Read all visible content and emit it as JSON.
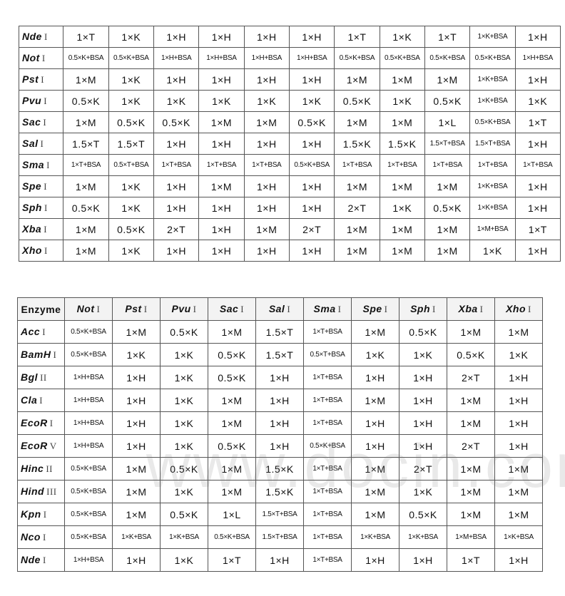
{
  "table1": {
    "rows": [
      {
        "enzyme": "Nde",
        "rn": "I",
        "cells": [
          "1×T",
          "1×K",
          "1×H",
          "1×H",
          "1×H",
          "1×H",
          "1×T",
          "1×K",
          "1×T",
          "1×K+BSA",
          "1×H"
        ]
      },
      {
        "enzyme": "Not",
        "rn": "I",
        "cells": [
          "0.5×K+BSA",
          "0.5×K+BSA",
          "1×H+BSA",
          "1×H+BSA",
          "1×H+BSA",
          "1×H+BSA",
          "0.5×K+BSA",
          "0.5×K+BSA",
          "0.5×K+BSA",
          "0.5×K+BSA",
          "1×H+BSA"
        ]
      },
      {
        "enzyme": "Pst",
        "rn": "I",
        "cells": [
          "1×M",
          "1×K",
          "1×H",
          "1×H",
          "1×H",
          "1×H",
          "1×M",
          "1×M",
          "1×M",
          "1×K+BSA",
          "1×H"
        ]
      },
      {
        "enzyme": "Pvu",
        "rn": "I",
        "cells": [
          "0.5×K",
          "1×K",
          "1×K",
          "1×K",
          "1×K",
          "1×K",
          "0.5×K",
          "1×K",
          "0.5×K",
          "1×K+BSA",
          "1×K"
        ]
      },
      {
        "enzyme": "Sac",
        "rn": "I",
        "cells": [
          "1×M",
          "0.5×K",
          "0.5×K",
          "1×M",
          "1×M",
          "0.5×K",
          "1×M",
          "1×M",
          "1×L",
          "0.5×K+BSA",
          "1×T"
        ]
      },
      {
        "enzyme": "Sal",
        "rn": "I",
        "cells": [
          "1.5×T",
          "1.5×T",
          "1×H",
          "1×H",
          "1×H",
          "1×H",
          "1.5×K",
          "1.5×K",
          "1.5×T+BSA",
          "1.5×T+BSA",
          "1×H"
        ]
      },
      {
        "enzyme": "Sma",
        "rn": "I",
        "cells": [
          "1×T+BSA",
          "0.5×T+BSA",
          "1×T+BSA",
          "1×T+BSA",
          "1×T+BSA",
          "0.5×K+BSA",
          "1×T+BSA",
          "1×T+BSA",
          "1×T+BSA",
          "1×T+BSA",
          "1×T+BSA"
        ]
      },
      {
        "enzyme": "Spe",
        "rn": "I",
        "cells": [
          "1×M",
          "1×K",
          "1×H",
          "1×M",
          "1×H",
          "1×H",
          "1×M",
          "1×M",
          "1×M",
          "1×K+BSA",
          "1×H"
        ]
      },
      {
        "enzyme": "Sph",
        "rn": "I",
        "cells": [
          "0.5×K",
          "1×K",
          "1×H",
          "1×H",
          "1×H",
          "1×H",
          "2×T",
          "1×K",
          "0.5×K",
          "1×K+BSA",
          "1×H"
        ]
      },
      {
        "enzyme": "Xba",
        "rn": "I",
        "cells": [
          "1×M",
          "0.5×K",
          "2×T",
          "1×H",
          "1×M",
          "2×T",
          "1×M",
          "1×M",
          "1×M",
          "1×M+BSA",
          "1×T"
        ]
      },
      {
        "enzyme": "Xho",
        "rn": "I",
        "cells": [
          "1×M",
          "1×K",
          "1×H",
          "1×H",
          "1×H",
          "1×H",
          "1×M",
          "1×M",
          "1×M",
          "1×K",
          "1×H"
        ]
      }
    ]
  },
  "table2": {
    "header_label": "Enzyme",
    "columns": [
      {
        "enzyme": "Not",
        "rn": "I"
      },
      {
        "enzyme": "Pst",
        "rn": "I"
      },
      {
        "enzyme": "Pvu",
        "rn": "I"
      },
      {
        "enzyme": "Sac",
        "rn": "I"
      },
      {
        "enzyme": "Sal",
        "rn": "I"
      },
      {
        "enzyme": "Sma",
        "rn": "I"
      },
      {
        "enzyme": "Spe",
        "rn": "I"
      },
      {
        "enzyme": "Sph",
        "rn": "I"
      },
      {
        "enzyme": "Xba",
        "rn": "I"
      },
      {
        "enzyme": "Xho",
        "rn": "I"
      }
    ],
    "rows": [
      {
        "enzyme": "Acc",
        "rn": "I",
        "cells": [
          "0.5×K+BSA",
          "1×M",
          "0.5×K",
          "1×M",
          "1.5×T",
          "1×T+BSA",
          "1×M",
          "0.5×K",
          "1×M",
          "1×M"
        ]
      },
      {
        "enzyme": "BamH",
        "rn": "I",
        "cells": [
          "0.5×K+BSA",
          "1×K",
          "1×K",
          "0.5×K",
          "1.5×T",
          "0.5×T+BSA",
          "1×K",
          "1×K",
          "0.5×K",
          "1×K"
        ]
      },
      {
        "enzyme": "Bgl",
        "rn": "II",
        "cells": [
          "1×H+BSA",
          "1×H",
          "1×K",
          "0.5×K",
          "1×H",
          "1×T+BSA",
          "1×H",
          "1×H",
          "2×T",
          "1×H"
        ]
      },
      {
        "enzyme": "Cla",
        "rn": "I",
        "cells": [
          "1×H+BSA",
          "1×H",
          "1×K",
          "1×M",
          "1×H",
          "1×T+BSA",
          "1×M",
          "1×H",
          "1×M",
          "1×H"
        ]
      },
      {
        "enzyme": "EcoR",
        "rn": "I",
        "cells": [
          "1×H+BSA",
          "1×H",
          "1×K",
          "1×M",
          "1×H",
          "1×T+BSA",
          "1×H",
          "1×H",
          "1×M",
          "1×H"
        ]
      },
      {
        "enzyme": "EcoR",
        "rn": "V",
        "cells": [
          "1×H+BSA",
          "1×H",
          "1×K",
          "0.5×K",
          "1×H",
          "0.5×K+BSA",
          "1×H",
          "1×H",
          "2×T",
          "1×H"
        ]
      },
      {
        "enzyme": "Hinc",
        "rn": "II",
        "cells": [
          "0.5×K+BSA",
          "1×M",
          "0.5×K",
          "1×M",
          "1.5×K",
          "1×T+BSA",
          "1×M",
          "2×T",
          "1×M",
          "1×M"
        ]
      },
      {
        "enzyme": "Hind",
        "rn": "III",
        "cells": [
          "0.5×K+BSA",
          "1×M",
          "1×K",
          "1×M",
          "1.5×K",
          "1×T+BSA",
          "1×M",
          "1×K",
          "1×M",
          "1×M"
        ]
      },
      {
        "enzyme": "Kpn",
        "rn": "I",
        "cells": [
          "0.5×K+BSA",
          "1×M",
          "0.5×K",
          "1×L",
          "1.5×T+BSA",
          "1×T+BSA",
          "1×M",
          "0.5×K",
          "1×M",
          "1×M"
        ]
      },
      {
        "enzyme": "Nco",
        "rn": "I",
        "cells": [
          "0.5×K+BSA",
          "1×K+BSA",
          "1×K+BSA",
          "0.5×K+BSA",
          "1.5×T+BSA",
          "1×T+BSA",
          "1×K+BSA",
          "1×K+BSA",
          "1×M+BSA",
          "1×K+BSA"
        ]
      },
      {
        "enzyme": "Nde",
        "rn": "I",
        "cells": [
          "1×H+BSA",
          "1×H",
          "1×K",
          "1×T",
          "1×H",
          "1×T+BSA",
          "1×H",
          "1×H",
          "1×T",
          "1×H"
        ]
      }
    ]
  },
  "watermark": "www.docin.com"
}
